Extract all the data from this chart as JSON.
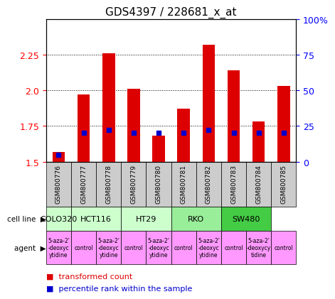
{
  "title": "GDS4397 / 228681_x_at",
  "samples": [
    "GSM800776",
    "GSM800777",
    "GSM800778",
    "GSM800779",
    "GSM800780",
    "GSM800781",
    "GSM800782",
    "GSM800783",
    "GSM800784",
    "GSM800785"
  ],
  "transformed_counts": [
    1.57,
    1.97,
    2.26,
    2.01,
    1.68,
    1.87,
    2.32,
    2.14,
    1.78,
    2.03
  ],
  "percentile_ranks": [
    5,
    20,
    22,
    20,
    20,
    20,
    22,
    20,
    20,
    20
  ],
  "cell_lines": [
    {
      "name": "COLO320",
      "start": 0,
      "end": 1,
      "color": "#ccffcc"
    },
    {
      "name": "HCT116",
      "start": 1,
      "end": 3,
      "color": "#ccffcc"
    },
    {
      "name": "HT29",
      "start": 3,
      "end": 5,
      "color": "#ccffcc"
    },
    {
      "name": "RKO",
      "start": 5,
      "end": 7,
      "color": "#aaffaa"
    },
    {
      "name": "SW480",
      "start": 7,
      "end": 9,
      "color": "#55ee55"
    }
  ],
  "agents": [
    {
      "name": "5-aza-2'\n-deoxyc\nytidine",
      "start": 0,
      "end": 0,
      "color": "#ff99ff"
    },
    {
      "name": "control",
      "start": 1,
      "end": 1,
      "color": "#ff99ff"
    },
    {
      "name": "5-aza-2'\n-deoxyc\nytidine",
      "start": 2,
      "end": 2,
      "color": "#ff99ff"
    },
    {
      "name": "control",
      "start": 3,
      "end": 3,
      "color": "#ff99ff"
    },
    {
      "name": "5-aza-2'\n-deoxyc\nytidine",
      "start": 4,
      "end": 4,
      "color": "#ff99ff"
    },
    {
      "name": "control",
      "start": 5,
      "end": 5,
      "color": "#ff99ff"
    },
    {
      "name": "5-aza-2'\n-deoxyc\nytidine",
      "start": 6,
      "end": 6,
      "color": "#ff99ff"
    },
    {
      "name": "control",
      "start": 7,
      "end": 7,
      "color": "#ff99ff"
    },
    {
      "name": "5-aza-2'\n-deoxycy\ntidine",
      "start": 8,
      "end": 8,
      "color": "#ff99ff"
    },
    {
      "name": "control",
      "start": 9,
      "end": 9,
      "color": "#ff99ff"
    }
  ],
  "ylim_left": [
    1.5,
    2.5
  ],
  "yticks_left": [
    1.5,
    1.75,
    2.0,
    2.25
  ],
  "ylim_right": [
    0,
    100
  ],
  "yticks_right": [
    0,
    25,
    50,
    75,
    100
  ],
  "bar_color": "#dd0000",
  "dot_color": "#0000cc",
  "bg_color": "#ffffff",
  "plot_bg_color": "#ffffff",
  "grid_color": "#000000",
  "sample_bg_color": "#cccccc",
  "cell_line_colors": [
    "#ccffcc",
    "#ccffcc",
    "#ccffcc",
    "#99ee99",
    "#44cc44"
  ],
  "agent_colors_aza": "#ff99ff",
  "agent_colors_ctrl": "#ff99ff"
}
